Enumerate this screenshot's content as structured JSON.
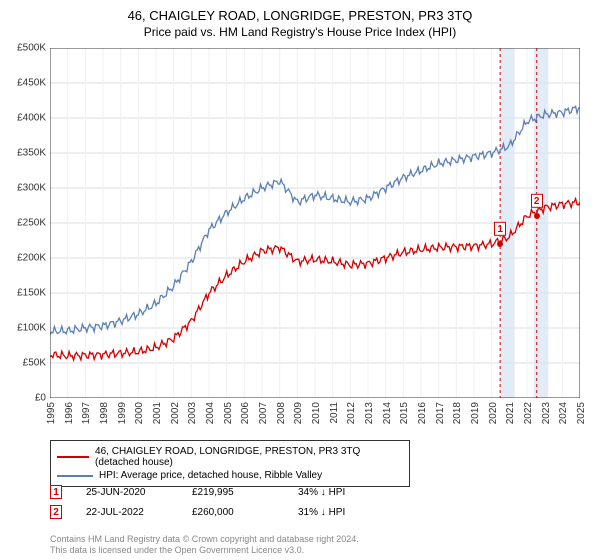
{
  "title": "46, CHAIGLEY ROAD, LONGRIDGE, PRESTON, PR3 3TQ",
  "subtitle": "Price paid vs. HM Land Registry's House Price Index (HPI)",
  "chart": {
    "type": "line",
    "background_color": "#ffffff",
    "grid_color": "#d9dde3",
    "minor_grid_color": "#eef0f3",
    "axis_color": "#333333",
    "label_fontsize": 10,
    "title_fontsize": 13,
    "ylim": [
      0,
      500000
    ],
    "ytick_step": 50000,
    "ytick_labels": [
      "£0",
      "£50K",
      "£100K",
      "£150K",
      "£200K",
      "£250K",
      "£300K",
      "£350K",
      "£400K",
      "£450K",
      "£500K"
    ],
    "x_years": [
      1995,
      1996,
      1997,
      1998,
      1999,
      2000,
      2001,
      2002,
      2003,
      2004,
      2005,
      2006,
      2007,
      2008,
      2009,
      2010,
      2011,
      2012,
      2013,
      2014,
      2015,
      2016,
      2017,
      2018,
      2019,
      2020,
      2021,
      2022,
      2023,
      2024,
      2025
    ],
    "series": [
      {
        "name": "price_paid",
        "color": "#d40000",
        "line_width": 1.3,
        "y": [
          62000,
          60000,
          61000,
          62000,
          64000,
          66000,
          72000,
          85000,
          110000,
          150000,
          175000,
          195000,
          210000,
          215000,
          195000,
          198000,
          195000,
          190000,
          192000,
          200000,
          208000,
          212000,
          215000,
          216000,
          217000,
          219995,
          230000,
          260000,
          272000,
          277000,
          280000
        ]
      },
      {
        "name": "hpi",
        "color": "#5b7fb4",
        "line_width": 1.3,
        "y": [
          95000,
          96000,
          100000,
          103000,
          110000,
          120000,
          135000,
          160000,
          195000,
          240000,
          265000,
          285000,
          300000,
          310000,
          280000,
          290000,
          285000,
          280000,
          285000,
          300000,
          315000,
          325000,
          335000,
          340000,
          345000,
          350000,
          360000,
          395000,
          405000,
          408000,
          415000
        ]
      }
    ],
    "overlays": [
      {
        "year_start": 2020.5,
        "year_end": 2021.3,
        "color": "#dbe7f5",
        "opacity": 0.8
      },
      {
        "year_start": 2022.4,
        "year_end": 2023.2,
        "color": "#dbe7f5",
        "opacity": 0.8
      }
    ],
    "vlines": [
      {
        "year": 2020.48,
        "color": "#d40000",
        "dash": "3,3"
      },
      {
        "year": 2022.55,
        "color": "#d40000",
        "dash": "3,3"
      }
    ],
    "markers": [
      {
        "id": "1",
        "year": 2020.48,
        "y": 219995,
        "color": "#d40000"
      },
      {
        "id": "2",
        "year": 2022.55,
        "y": 260000,
        "color": "#d40000"
      }
    ]
  },
  "legend": {
    "items": [
      {
        "label": "46, CHAIGLEY ROAD, LONGRIDGE, PRESTON, PR3 3TQ (detached house)",
        "color": "#d40000"
      },
      {
        "label": "HPI: Average price, detached house, Ribble Valley",
        "color": "#5b7fb4"
      }
    ]
  },
  "events": [
    {
      "id": "1",
      "date": "25-JUN-2020",
      "price": "£219,995",
      "pct": "34%",
      "arrow": "↓",
      "vs": "HPI",
      "color": "#d40000"
    },
    {
      "id": "2",
      "date": "22-JUL-2022",
      "price": "£260,000",
      "pct": "31%",
      "arrow": "↓",
      "vs": "HPI",
      "color": "#d40000"
    }
  ],
  "footnote": {
    "line1": "Contains HM Land Registry data © Crown copyright and database right 2024.",
    "line2": "This data is licensed under the Open Government Licence v3.0."
  }
}
